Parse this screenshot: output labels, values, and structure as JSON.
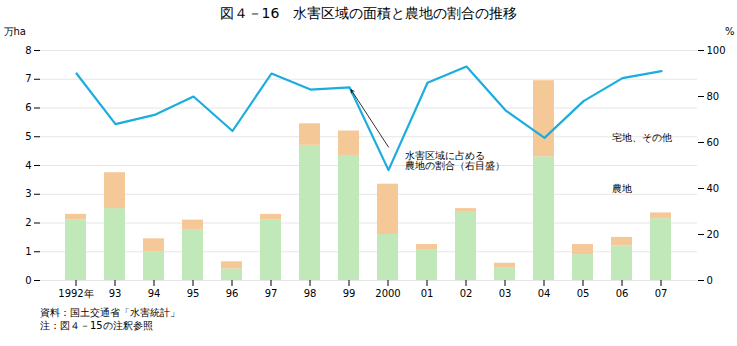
{
  "chart_data": {
    "type": "bar",
    "stacked": true,
    "title": "図４－16　水害区域の面積と農地の割合の推移",
    "categories": [
      "1992年",
      "93",
      "94",
      "95",
      "96",
      "97",
      "98",
      "99",
      "2000",
      "01",
      "02",
      "03",
      "04",
      "05",
      "06",
      "07"
    ],
    "series": [
      {
        "name": "農地",
        "color": "#c0e8b8",
        "values": [
          2.1,
          2.5,
          1.0,
          1.75,
          0.4,
          2.1,
          4.7,
          4.35,
          1.6,
          1.05,
          2.4,
          0.45,
          4.3,
          0.9,
          1.2,
          2.15
        ]
      },
      {
        "name": "宅地、その他",
        "color": "#f5c897",
        "values": [
          0.2,
          1.25,
          0.45,
          0.35,
          0.25,
          0.2,
          0.75,
          0.85,
          1.75,
          0.2,
          0.1,
          0.15,
          2.65,
          0.35,
          0.3,
          0.2
        ]
      },
      {
        "type": "line",
        "axis": "y2",
        "color": "#1aadde",
        "values": [
          90,
          68,
          72,
          80,
          65,
          90,
          83,
          84,
          48,
          86,
          93,
          74,
          62,
          78,
          88,
          91
        ]
      }
    ],
    "ylabel": "万ha",
    "y2label": "%",
    "ylim": [
      0,
      8
    ],
    "yticks": [
      0,
      1,
      2,
      3,
      4,
      5,
      6,
      7,
      8
    ],
    "y2lim": [
      0,
      100
    ],
    "y2ticks": [
      0,
      20,
      40,
      60,
      80,
      100
    ],
    "grid": true,
    "annotations": [
      {
        "text": "水害区域に占める\n農地の割合（右目盛）",
        "x": "99",
        "y": 84,
        "axis": "y2"
      }
    ],
    "caption": "資料：国土交通省「水害統計」\n注：図４－15の注釈参照"
  }
}
